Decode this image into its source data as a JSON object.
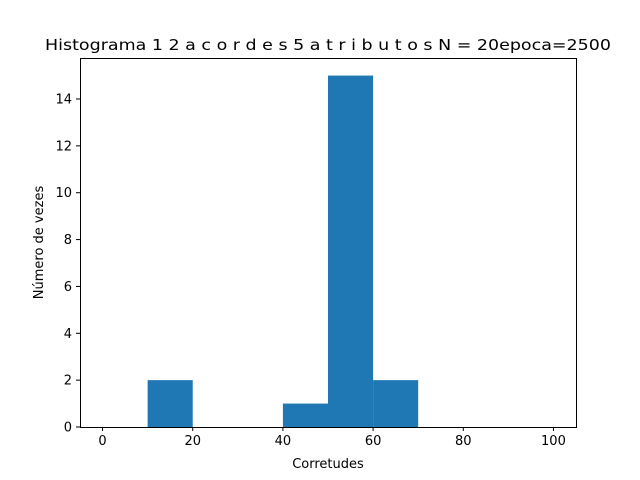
{
  "chart_data": {
    "type": "bar",
    "title": "Histograma 1 2   a c o r d e s   5   a t r i b u t o s N = 20epoca=2500",
    "xlabel": "Corretudes",
    "ylabel": "Número de vezes",
    "bins": [
      {
        "x0": 10,
        "x1": 20,
        "count": 2
      },
      {
        "x0": 40,
        "x1": 50,
        "count": 1
      },
      {
        "x0": 50,
        "x1": 60,
        "count": 15
      },
      {
        "x0": 60,
        "x1": 70,
        "count": 2
      }
    ],
    "xlim": [
      -5,
      105
    ],
    "ylim": [
      0,
      15.75
    ],
    "xticks": [
      0,
      20,
      40,
      60,
      80,
      100
    ],
    "yticks": [
      0,
      2,
      4,
      6,
      8,
      10,
      12,
      14
    ],
    "bar_color": "#1f77b4",
    "grid": false,
    "legend": "none"
  }
}
